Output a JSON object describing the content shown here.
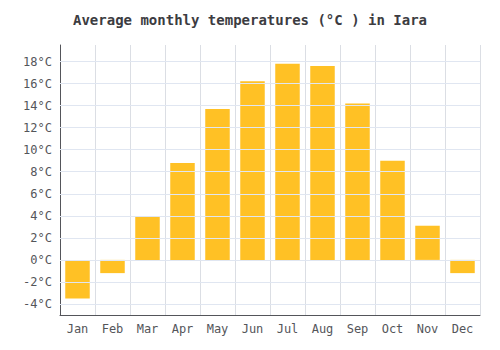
{
  "chart_data": {
    "type": "bar",
    "title": "Average monthly temperatures (°C ) in Iara",
    "categories": [
      "Jan",
      "Feb",
      "Mar",
      "Apr",
      "May",
      "Jun",
      "Jul",
      "Aug",
      "Sep",
      "Oct",
      "Nov",
      "Dec"
    ],
    "values": [
      -3.5,
      -1.2,
      3.9,
      8.8,
      13.7,
      16.2,
      17.8,
      17.6,
      14.2,
      9.0,
      3.1,
      -1.2
    ],
    "color": "#FFC125",
    "ylim": [
      -5,
      19.5
    ],
    "yticks": [
      {
        "value": -4,
        "label": "-4°C"
      },
      {
        "value": -2,
        "label": "-2°C"
      },
      {
        "value": 0,
        "label": "0°C"
      },
      {
        "value": 2,
        "label": "2°C"
      },
      {
        "value": 4,
        "label": "4°C"
      },
      {
        "value": 6,
        "label": "6°C"
      },
      {
        "value": 8,
        "label": "8°C"
      },
      {
        "value": 10,
        "label": "10°C"
      },
      {
        "value": 12,
        "label": "12°C"
      },
      {
        "value": 14,
        "label": "14°C"
      },
      {
        "value": 16,
        "label": "16°C"
      },
      {
        "value": 18,
        "label": "18°C"
      }
    ],
    "grid": true
  }
}
